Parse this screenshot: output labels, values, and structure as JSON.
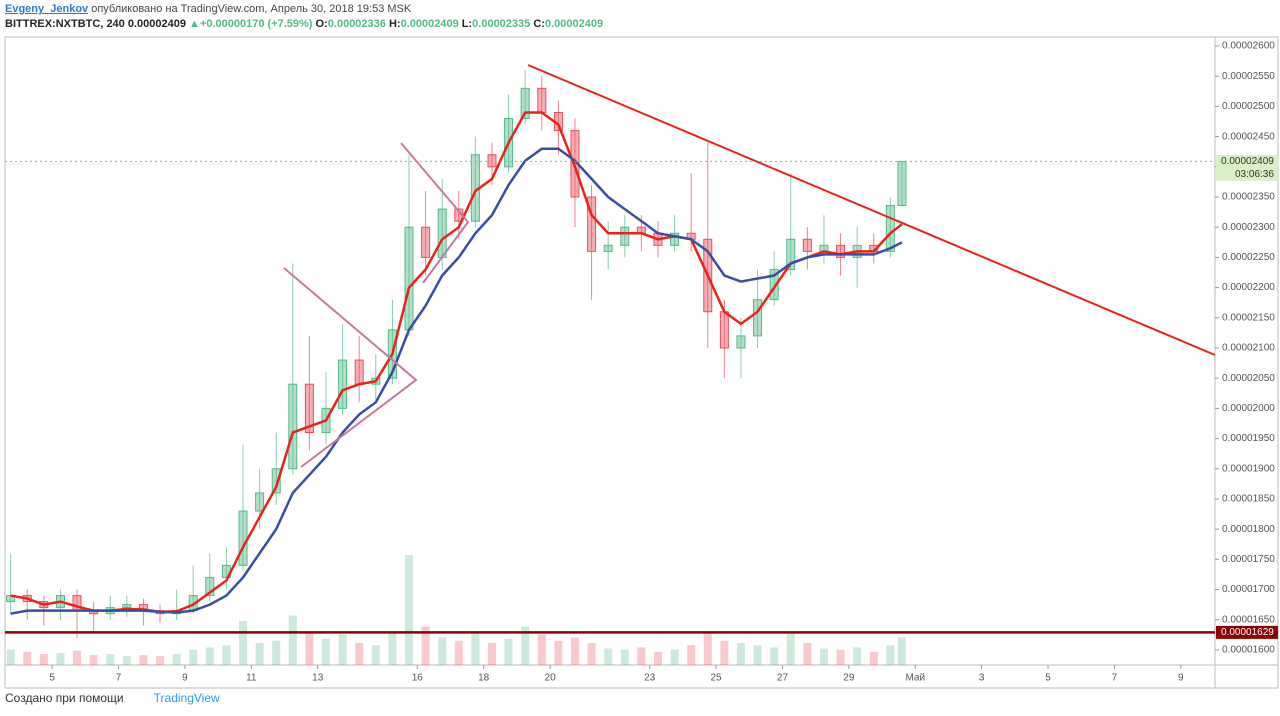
{
  "header": {
    "author": "Evgeny_Jenkov",
    "published": "опубликовано на TradingView.com, Апрель 30, 2018 19:53 MSK"
  },
  "legend": {
    "symbol": "BITTREX:NXTBTC, 240",
    "last": "0.00002409",
    "arrow": "▲",
    "change": "+0.00000170 (+7.59%)",
    "o_label": "O:",
    "o": "0.00002336",
    "h_label": "H:",
    "h": "0.00002409",
    "l_label": "L:",
    "l": "0.00002335",
    "c_label": "C:",
    "c": "0.00002409"
  },
  "footer": {
    "made_with": "Создано при помощи",
    "brand": "TradingView"
  },
  "chart_data": {
    "type": "candlestick",
    "up_color": "#53b987",
    "down_color": "#eb4d5c",
    "x": [
      3.75,
      4.25,
      4.75,
      5.25,
      5.75,
      6.25,
      6.75,
      7.25,
      7.75,
      8.25,
      8.75,
      9.25,
      9.75,
      10.25,
      10.75,
      11.25,
      11.75,
      12.25,
      12.75,
      13.25,
      13.75,
      14.25,
      14.75,
      15.25,
      15.75,
      16.25,
      16.75,
      17.25,
      17.75,
      18.25,
      18.75,
      19.25,
      19.75,
      20.25,
      20.75,
      21.25,
      21.75,
      22.25,
      22.75,
      23.25,
      23.75,
      24.25,
      24.75,
      25.25,
      25.75,
      26.25,
      26.75,
      27.25,
      27.75,
      28.25,
      28.75,
      29.25,
      29.75,
      30.25,
      30.6
    ],
    "open": [
      1.68e-05,
      1.69e-05,
      1.68e-05,
      1.67e-05,
      1.69e-05,
      1.665e-05,
      1.66e-05,
      1.67e-05,
      1.675e-05,
      1.665e-05,
      1.66e-05,
      1.665e-05,
      1.69e-05,
      1.72e-05,
      1.74e-05,
      1.83e-05,
      1.86e-05,
      1.9e-05,
      2.04e-05,
      1.96e-05,
      2e-05,
      2.08e-05,
      2.04e-05,
      2.05e-05,
      2.13e-05,
      2.3e-05,
      2.25e-05,
      2.33e-05,
      2.31e-05,
      2.42e-05,
      2.4e-05,
      2.48e-05,
      2.53e-05,
      2.49e-05,
      2.46e-05,
      2.35e-05,
      2.26e-05,
      2.27e-05,
      2.3e-05,
      2.29e-05,
      2.27e-05,
      2.29e-05,
      2.28e-05,
      2.16e-05,
      2.1e-05,
      2.12e-05,
      2.18e-05,
      2.23e-05,
      2.28e-05,
      2.26e-05,
      2.27e-05,
      2.25e-05,
      2.27e-05,
      2.26e-05,
      2.336e-05
    ],
    "high": [
      1.76e-05,
      1.7e-05,
      1.69e-05,
      1.7e-05,
      1.7e-05,
      1.68e-05,
      1.69e-05,
      1.69e-05,
      1.685e-05,
      1.675e-05,
      1.7e-05,
      1.74e-05,
      1.76e-05,
      1.77e-05,
      1.94e-05,
      1.9e-05,
      1.96e-05,
      2.24e-05,
      2.12e-05,
      2.06e-05,
      2.14e-05,
      2.12e-05,
      2.09e-05,
      2.18e-05,
      2.42e-05,
      2.36e-05,
      2.38e-05,
      2.36e-05,
      2.45e-05,
      2.44e-05,
      2.52e-05,
      2.56e-05,
      2.55e-05,
      2.51e-05,
      2.48e-05,
      2.37e-05,
      2.31e-05,
      2.32e-05,
      2.32e-05,
      2.31e-05,
      2.32e-05,
      2.39e-05,
      2.44e-05,
      2.18e-05,
      2.15e-05,
      2.23e-05,
      2.26e-05,
      2.39e-05,
      2.3e-05,
      2.32e-05,
      2.29e-05,
      2.3e-05,
      2.29e-05,
      2.35e-05,
      2.409e-05
    ],
    "low": [
      1.66e-05,
      1.65e-05,
      1.64e-05,
      1.65e-05,
      1.62e-05,
      1.63e-05,
      1.65e-05,
      1.655e-05,
      1.64e-05,
      1.645e-05,
      1.65e-05,
      1.66e-05,
      1.68e-05,
      1.7e-05,
      1.73e-05,
      1.8e-05,
      1.84e-05,
      1.89e-05,
      1.93e-05,
      1.94e-05,
      1.99e-05,
      2.01e-05,
      2.01e-05,
      2.04e-05,
      2.12e-05,
      2.22e-05,
      2.23e-05,
      2.28e-05,
      2.3e-05,
      2.37e-05,
      2.39e-05,
      2.47e-05,
      2.46e-05,
      2.42e-05,
      2.3e-05,
      2.18e-05,
      2.23e-05,
      2.25e-05,
      2.26e-05,
      2.25e-05,
      2.26e-05,
      2.26e-05,
      2.1e-05,
      2.05e-05,
      2.05e-05,
      2.1e-05,
      2.17e-05,
      2.22e-05,
      2.23e-05,
      2.24e-05,
      2.22e-05,
      2.2e-05,
      2.24e-05,
      2.25e-05,
      2.335e-05
    ],
    "close": [
      1.69e-05,
      1.68e-05,
      1.67e-05,
      1.69e-05,
      1.665e-05,
      1.66e-05,
      1.67e-05,
      1.675e-05,
      1.665e-05,
      1.66e-05,
      1.665e-05,
      1.69e-05,
      1.72e-05,
      1.74e-05,
      1.83e-05,
      1.86e-05,
      1.9e-05,
      2.04e-05,
      1.96e-05,
      2e-05,
      2.08e-05,
      2.04e-05,
      2.05e-05,
      2.13e-05,
      2.3e-05,
      2.25e-05,
      2.33e-05,
      2.31e-05,
      2.42e-05,
      2.4e-05,
      2.48e-05,
      2.53e-05,
      2.49e-05,
      2.46e-05,
      2.35e-05,
      2.26e-05,
      2.27e-05,
      2.3e-05,
      2.29e-05,
      2.27e-05,
      2.29e-05,
      2.28e-05,
      2.16e-05,
      2.1e-05,
      2.12e-05,
      2.18e-05,
      2.23e-05,
      2.28e-05,
      2.26e-05,
      2.27e-05,
      2.25e-05,
      2.27e-05,
      2.26e-05,
      2.336e-05,
      2.409e-05
    ],
    "volume": [
      14,
      12,
      10,
      11,
      13,
      9,
      10,
      8,
      9,
      8,
      10,
      14,
      16,
      18,
      40,
      20,
      22,
      45,
      30,
      24,
      28,
      20,
      18,
      30,
      100,
      35,
      25,
      22,
      30,
      20,
      24,
      35,
      28,
      22,
      25,
      20,
      15,
      14,
      16,
      12,
      14,
      18,
      30,
      22,
      20,
      18,
      16,
      30,
      20,
      15,
      14,
      16,
      12,
      18,
      25
    ],
    "lines": [
      {
        "color": "#e8231b",
        "values": [
          1.69e-05,
          1.685e-05,
          1.675e-05,
          1.68e-05,
          1.672e-05,
          1.665e-05,
          1.665e-05,
          1.668e-05,
          1.667e-05,
          1.663e-05,
          1.664e-05,
          1.675e-05,
          1.695e-05,
          1.715e-05,
          1.77e-05,
          1.82e-05,
          1.87e-05,
          1.96e-05,
          1.97e-05,
          1.98e-05,
          2.03e-05,
          2.04e-05,
          2.045e-05,
          2.09e-05,
          2.2e-05,
          2.23e-05,
          2.28e-05,
          2.3e-05,
          2.36e-05,
          2.38e-05,
          2.44e-05,
          2.49e-05,
          2.49e-05,
          2.47e-05,
          2.4e-05,
          2.32e-05,
          2.29e-05,
          2.29e-05,
          2.29e-05,
          2.28e-05,
          2.285e-05,
          2.28e-05,
          2.22e-05,
          2.16e-05,
          2.14e-05,
          2.16e-05,
          2.2e-05,
          2.24e-05,
          2.25e-05,
          2.26e-05,
          2.255e-05,
          2.26e-05,
          2.26e-05,
          2.29e-05,
          2.305e-05
        ]
      },
      {
        "color": "#3a4ea0",
        "values": [
          1.66e-05,
          1.665e-05,
          1.665e-05,
          1.665e-05,
          1.665e-05,
          1.665e-05,
          1.665e-05,
          1.665e-05,
          1.665e-05,
          1.663e-05,
          1.662e-05,
          1.665e-05,
          1.675e-05,
          1.69e-05,
          1.72e-05,
          1.76e-05,
          1.8e-05,
          1.86e-05,
          1.89e-05,
          1.92e-05,
          1.96e-05,
          1.99e-05,
          2.01e-05,
          2.06e-05,
          2.13e-05,
          2.17e-05,
          2.22e-05,
          2.25e-05,
          2.29e-05,
          2.32e-05,
          2.37e-05,
          2.41e-05,
          2.43e-05,
          2.43e-05,
          2.41e-05,
          2.38e-05,
          2.35e-05,
          2.33e-05,
          2.31e-05,
          2.29e-05,
          2.285e-05,
          2.28e-05,
          2.26e-05,
          2.22e-05,
          2.21e-05,
          2.215e-05,
          2.22e-05,
          2.24e-05,
          2.25e-05,
          2.255e-05,
          2.255e-05,
          2.255e-05,
          2.255e-05,
          2.265e-05,
          2.275e-05
        ]
      }
    ],
    "xlim": [
      3.58,
      40.03
    ],
    "ylim": [
      1.575e-05,
      2.615e-05
    ],
    "xticks": [
      5,
      7,
      9,
      11,
      13,
      16,
      18,
      20,
      23,
      25,
      27,
      29,
      {
        "value": 31,
        "label": "Май"
      },
      {
        "value": 33,
        "label": "3"
      },
      {
        "value": 35,
        "label": "5"
      },
      {
        "value": 37,
        "label": "7"
      },
      {
        "value": 39,
        "label": "9"
      }
    ],
    "yticks": [
      {
        "value": 1.6e-05,
        "label": "0.00001600"
      },
      {
        "value": 1.65e-05,
        "label": "0.00001650"
      },
      {
        "value": 1.7e-05,
        "label": "0.00001700"
      },
      {
        "value": 1.75e-05,
        "label": "0.00001750"
      },
      {
        "value": 1.8e-05,
        "label": "0.00001800"
      },
      {
        "value": 1.85e-05,
        "label": "0.00001850"
      },
      {
        "value": 1.9e-05,
        "label": "0.00001900"
      },
      {
        "value": 1.95e-05,
        "label": "0.00001950"
      },
      {
        "value": 2e-05,
        "label": "0.00002000"
      },
      {
        "value": 2.05e-05,
        "label": "0.00002050"
      },
      {
        "value": 2.1e-05,
        "label": "0.00002100"
      },
      {
        "value": 2.15e-05,
        "label": "0.00002150"
      },
      {
        "value": 2.2e-05,
        "label": "0.00002200"
      },
      {
        "value": 2.25e-05,
        "label": "0.00002250"
      },
      {
        "value": 2.3e-05,
        "label": "0.00002300"
      },
      {
        "value": 2.35e-05,
        "label": "0.00002350"
      },
      {
        "value": 2.4e-05,
        "label": "0.00002400"
      },
      {
        "value": 2.45e-05,
        "label": "0.00002450"
      },
      {
        "value": 2.5e-05,
        "label": "0.00002500"
      },
      {
        "value": 2.55e-05,
        "label": "0.00002550"
      },
      {
        "value": 2.6e-05,
        "label": "0.00002600"
      }
    ],
    "price_lines": [
      {
        "value": 2.409e-05,
        "label": "0.00002409",
        "color": "#8bc34a",
        "dashed": true,
        "countdown": "03:06:36"
      },
      {
        "value": 1.629e-05,
        "label": "0.00001629",
        "color": "#8b0000",
        "dashed": false
      }
    ]
  }
}
